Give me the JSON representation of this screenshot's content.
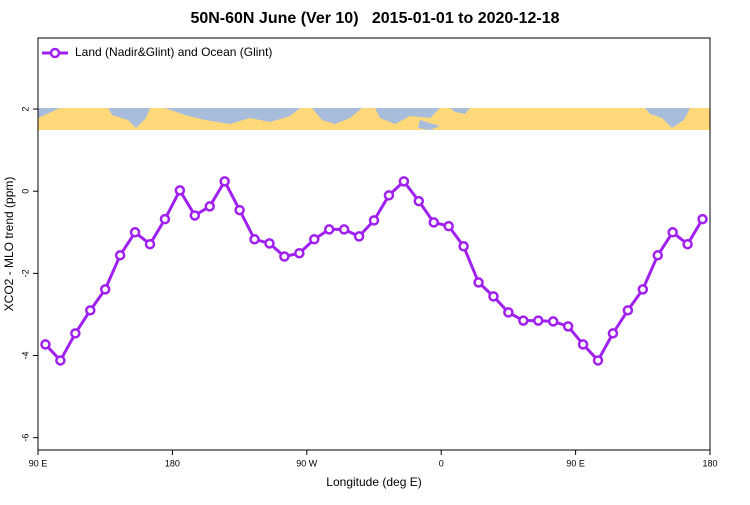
{
  "chart_data": {
    "type": "line",
    "title": "50N-60N June (Ver 10)   2015-01-01 to 2020-12-18",
    "x_label": "Longitude (deg E)",
    "y_label": "XCO2 - MLO trend (ppm)",
    "x": [
      95,
      105,
      115,
      125,
      135,
      145,
      155,
      165,
      175,
      185,
      195,
      205,
      215,
      225,
      235,
      245,
      255,
      265,
      275,
      285,
      295,
      305,
      315,
      325,
      335,
      345,
      355,
      365,
      375,
      385,
      395,
      405,
      415,
      425,
      435,
      445,
      455,
      465,
      475,
      485,
      495,
      505,
      515,
      525,
      535
    ],
    "series": [
      {
        "name": "Land (Nadir&Glint) and Ocean (Glint)",
        "color": "#a020f0",
        "values": [
          -3.73,
          -4.12,
          -3.46,
          -2.9,
          -2.39,
          -1.56,
          -1.0,
          -1.29,
          -0.68,
          0.02,
          -0.59,
          -0.37,
          0.24,
          -0.46,
          -1.17,
          -1.27,
          -1.59,
          -1.51,
          -1.17,
          -0.93,
          -0.93,
          -1.1,
          -0.71,
          -0.1,
          0.24,
          -0.24,
          -0.76,
          -0.85,
          -1.34,
          -2.22,
          -2.56,
          -2.95,
          -3.15,
          -3.15,
          -3.17,
          -3.29,
          -3.73,
          -4.12,
          -3.46,
          -2.9,
          -2.39,
          -1.56,
          -1.0,
          -1.29,
          -0.68
        ]
      }
    ],
    "xlim": [
      90,
      540
    ],
    "xticks": [
      {
        "value": 90,
        "label": "90 E"
      },
      {
        "value": 180,
        "label": "180"
      },
      {
        "value": 270,
        "label": "90 W"
      },
      {
        "value": 360,
        "label": "0"
      },
      {
        "value": 450,
        "label": "90 E"
      },
      {
        "value": 540,
        "label": "180"
      }
    ],
    "ylim": [
      -6.3,
      3.73
    ],
    "yticks": [
      -6,
      -4,
      -2,
      0,
      2
    ],
    "legend": "top-left",
    "grid": false
  }
}
